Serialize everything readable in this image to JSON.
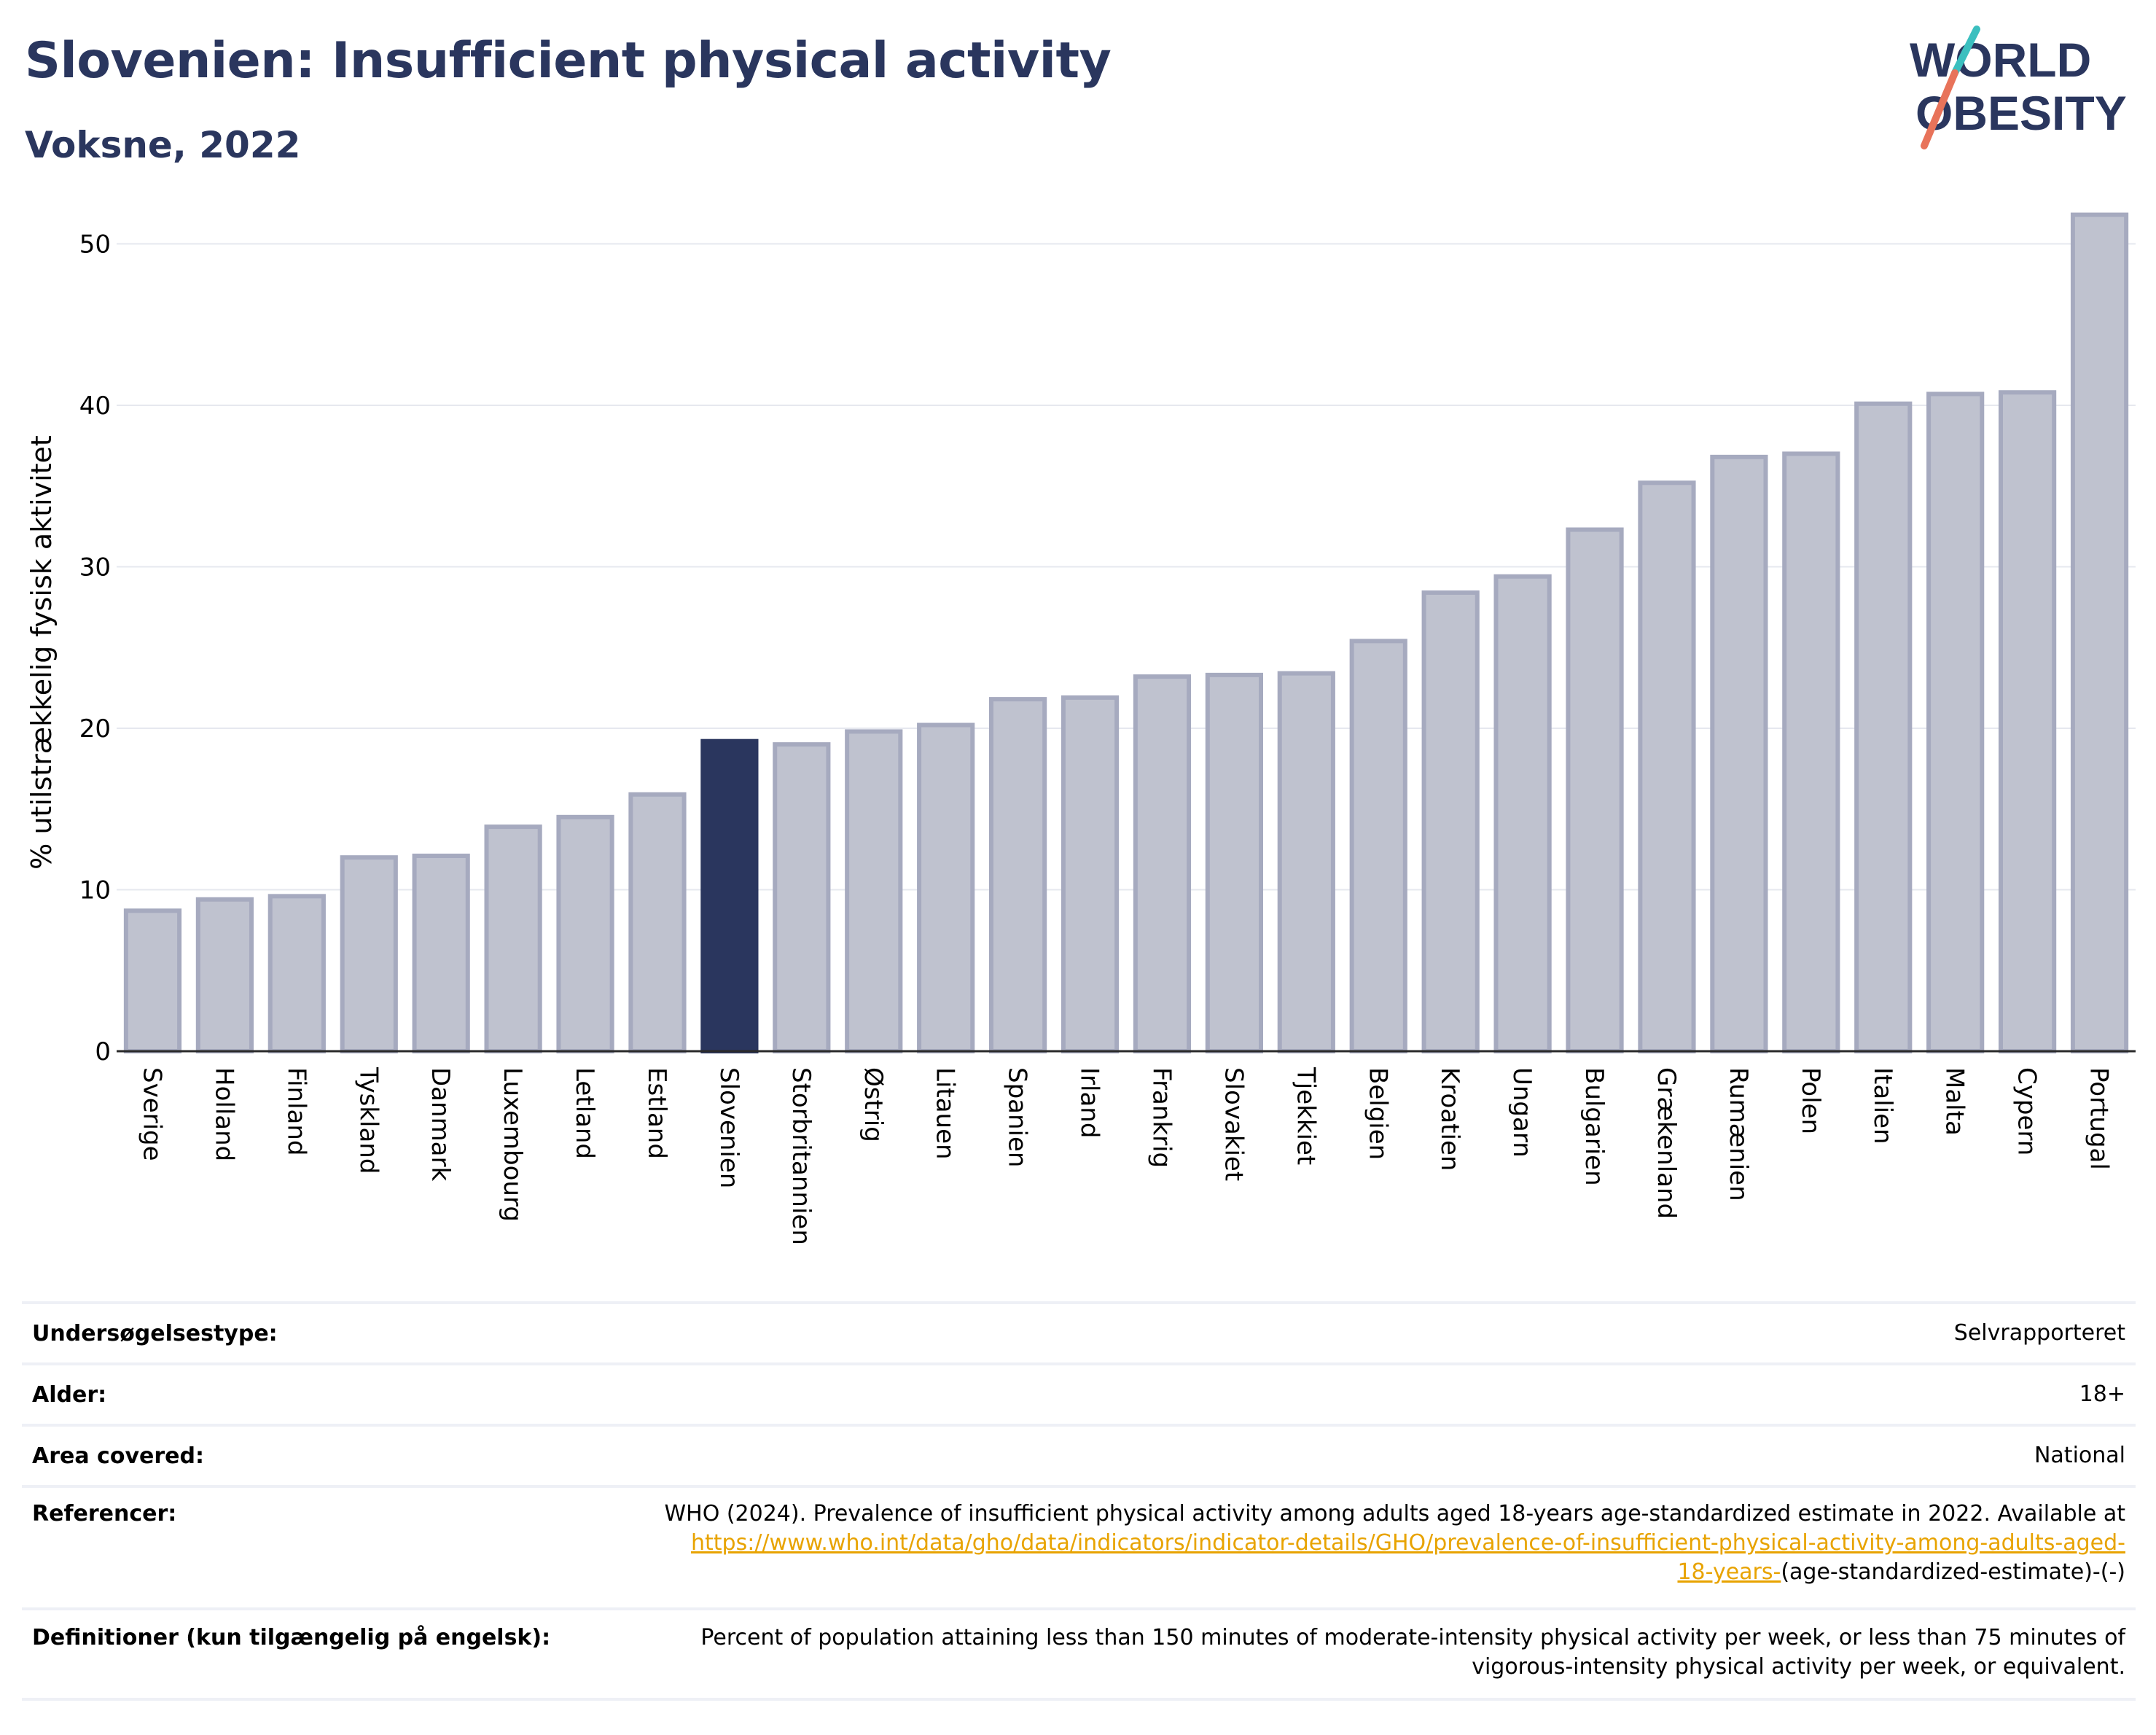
{
  "header": {
    "title": "Slovenien: Insufficient physical activity",
    "subtitle": "Voksne, 2022"
  },
  "logo": {
    "line1": "WORLD",
    "line2": "OBESITY",
    "colors": [
      "#2a365e",
      "#e8735a",
      "#3bbfbf"
    ]
  },
  "colors": {
    "highlight": "#2a365e",
    "bar": "#bfc2cf",
    "bar_edge": "#a6aabf",
    "text": "#2a365e",
    "link": "#e8a300"
  },
  "chart_data": {
    "type": "bar",
    "ylabel": "% utilstrækkelig fysisk aktivitet",
    "ylim": [
      0,
      53
    ],
    "yticks": [
      0,
      10,
      20,
      30,
      40,
      50
    ],
    "grid": true,
    "highlight": "Slovenien",
    "categories": [
      "Sverige",
      "Holland",
      "Finland",
      "Tyskland",
      "Danmark",
      "Luxembourg",
      "Letland",
      "Estland",
      "Slovenien",
      "Storbritannien",
      "Østrig",
      "Litauen",
      "Spanien",
      "Irland",
      "Frankrig",
      "Slovakiet",
      "Tjekkiet",
      "Belgien",
      "Kroatien",
      "Ungarn",
      "Bulgarien",
      "Grækenland",
      "Rumænien",
      "Polen",
      "Italien",
      "Malta",
      "Cypern",
      "Portugal"
    ],
    "values": [
      8.7,
      9.4,
      9.6,
      12.0,
      12.1,
      13.9,
      14.5,
      15.9,
      19.2,
      19.0,
      19.8,
      20.2,
      21.8,
      21.9,
      23.2,
      23.3,
      23.4,
      25.4,
      28.4,
      29.4,
      32.3,
      35.2,
      36.8,
      37.0,
      40.1,
      40.7,
      40.8,
      51.8
    ]
  },
  "meta": {
    "survey_type": {
      "label": "Undersøgelsestype:",
      "value": "Selvrapporteret"
    },
    "age": {
      "label": "Alder:",
      "value": "18+"
    },
    "area": {
      "label": "Area covered:",
      "value": "National"
    },
    "references": {
      "label": "Referencer:",
      "text": "WHO (2024). Prevalence of insufficient physical activity among adults aged 18-years age-standardized estimate in 2022. Available at",
      "link_line1": "https://www.who.int/data/gho/data/indicators/indicator-details/GHO/prevalence-of-insufficient-physical-activity-among-adults-aged-",
      "link_line2": "18-years-",
      "suffix": "(age-standardized-estimate)-(-)"
    },
    "definitions": {
      "label": "Definitioner (kun tilgængelig på engelsk):",
      "line1": "Percent of population attaining less than 150 minutes of moderate-intensity physical activity per week, or less than 75 minutes of",
      "line2": "vigorous-intensity physical activity per week, or equivalent."
    }
  }
}
